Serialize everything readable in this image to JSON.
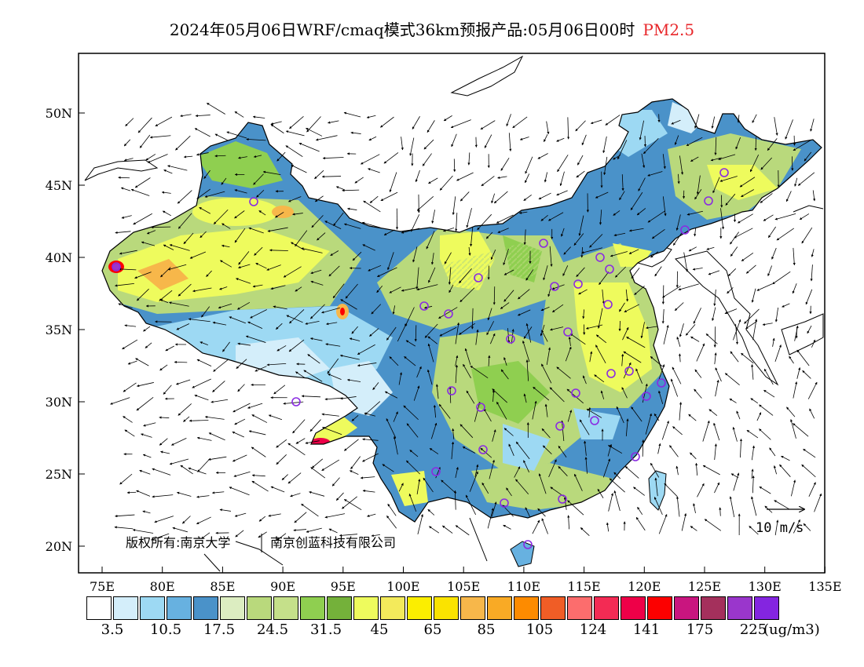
{
  "title": {
    "main": "2024年05月06日WRF/cmaq模式36km预报产品:05月06日00时",
    "pollutant": "PM2.5"
  },
  "axes": {
    "lat_labels": [
      "50N",
      "45N",
      "40N",
      "35N",
      "30N",
      "25N",
      "20N"
    ],
    "lon_labels": [
      "75E",
      "80E",
      "85E",
      "90E",
      "95E",
      "100E",
      "105E",
      "110E",
      "115E",
      "120E",
      "125E",
      "130E",
      "135E"
    ],
    "lon_range": [
      73,
      135
    ],
    "lat_range": [
      18,
      54
    ]
  },
  "copyright": {
    "text1": "版权所有:南京大学",
    "text2": "南京创蓝科技有限公司"
  },
  "wind_legend": {
    "label": "10 m/s"
  },
  "colorbar": {
    "colors": [
      "#ffffff",
      "#d4eefa",
      "#9dd9f3",
      "#67b1e0",
      "#4a92c9",
      "#dcedc1",
      "#b9d97c",
      "#c5e08a",
      "#8fcf50",
      "#74b13a",
      "#eefb5d",
      "#f3ea5b",
      "#fbee00",
      "#fae300",
      "#f7b74a",
      "#f9aa25",
      "#fd8b00",
      "#f05d26",
      "#fc6d6d",
      "#f32b54",
      "#ee0048",
      "#fc0000",
      "#c9157f",
      "#a4305c",
      "#9a36cc",
      "#8425e0"
    ],
    "tick_labels": [
      "3.5",
      "10.5",
      "17.5",
      "24.5",
      "31.5",
      "45",
      "65",
      "85",
      "105",
      "124",
      "141",
      "175",
      "225"
    ],
    "unit": "(ug/m3)"
  },
  "map": {
    "ocean_color": "#ffffff",
    "frame_color": "#000000",
    "site_color": "#8a2be2",
    "wind_arrow_color": "#000000"
  }
}
